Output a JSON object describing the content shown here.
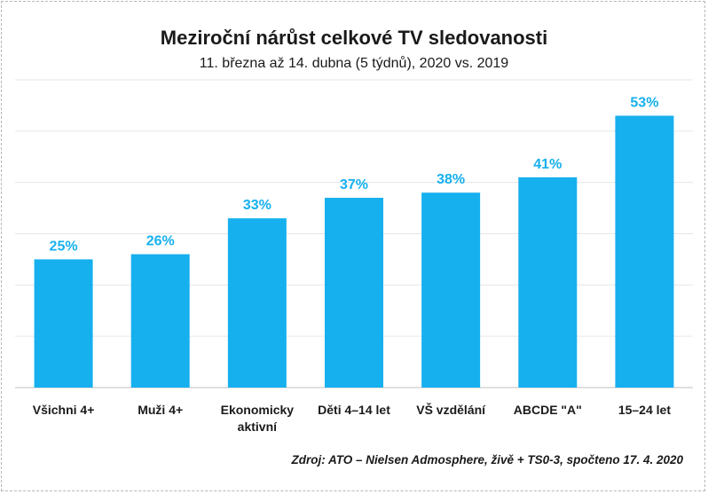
{
  "chart_data": {
    "type": "bar",
    "title": "Meziroční nárůst celkové TV sledovanosti",
    "subtitle": "11. března až 14. dubna (5 týdnů), 2020 vs. 2019",
    "categories": [
      [
        "Všichni 4+"
      ],
      [
        "Muži 4+"
      ],
      [
        "Ekonomicky",
        "aktivní"
      ],
      [
        "Děti 4–14 let"
      ],
      [
        "VŠ vzdělání"
      ],
      [
        "ABCDE \"A\""
      ],
      [
        "15–24 let"
      ]
    ],
    "values": [
      25,
      26,
      33,
      37,
      38,
      41,
      53
    ],
    "value_labels": [
      "25%",
      "26%",
      "33%",
      "37%",
      "38%",
      "41%",
      "53%"
    ],
    "ylim": [
      0,
      60
    ],
    "gridlines": [
      10,
      20,
      30,
      40,
      50,
      60
    ],
    "grid": true,
    "legend": "none",
    "bar_color": "#16b0ee",
    "label_color": "#16b0ee",
    "grid_color": "#e6e6e6",
    "axis_color": "#bfbfbf"
  },
  "source": "Zdroj: ATO – Nielsen Admosphere, živě + TS0-3, spočteno 17. 4. 2020"
}
